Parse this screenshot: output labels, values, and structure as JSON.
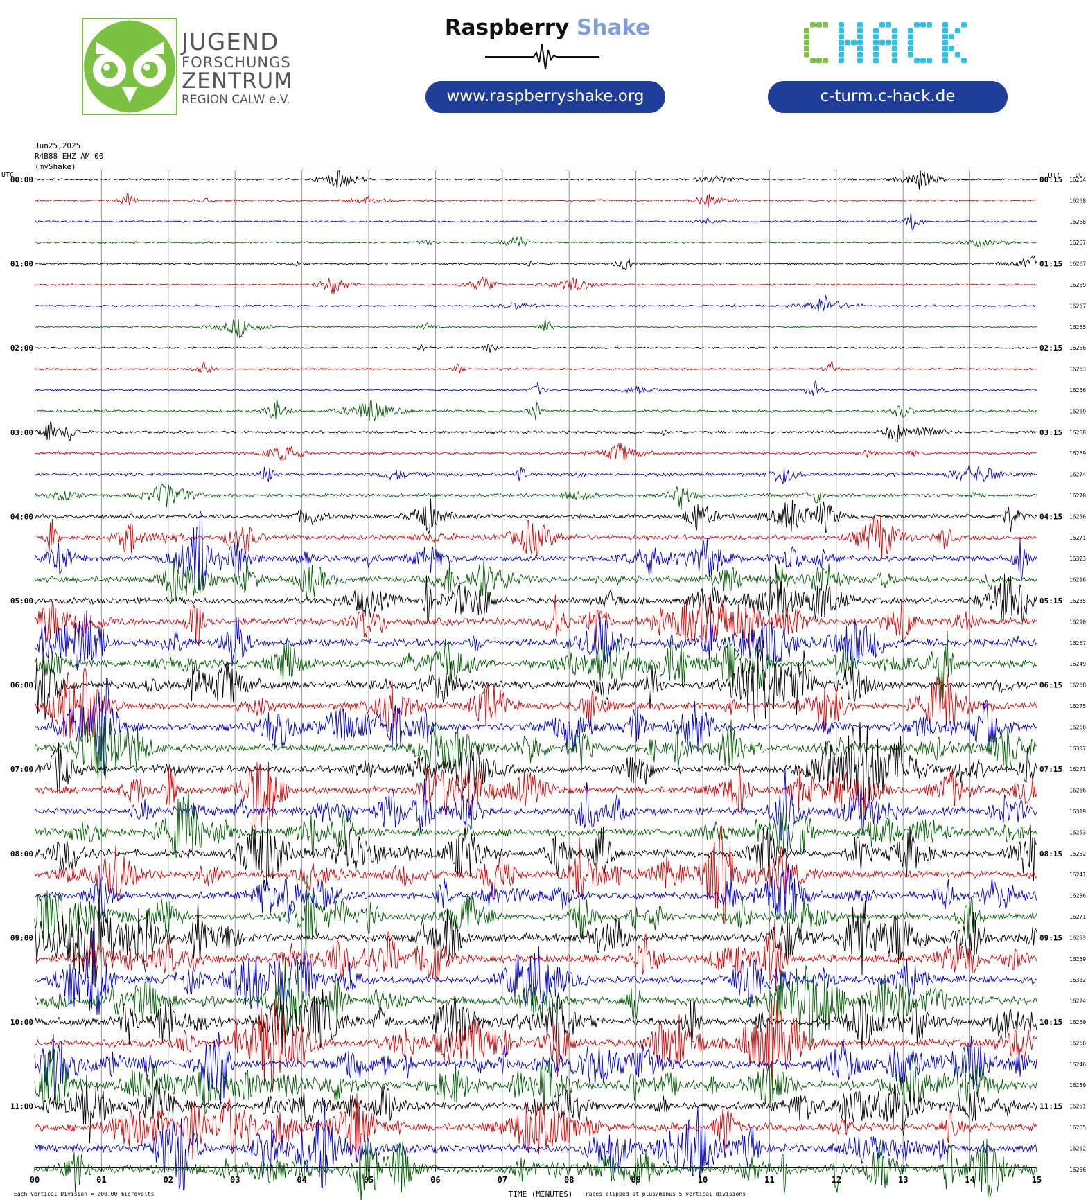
{
  "header": {
    "jfz": {
      "line1": "JUGEND",
      "line2": "FORSCHUNGS",
      "line3": "ZENTRUM",
      "line4": "REGION CALW e.V."
    },
    "rs": {
      "word1": "Raspberry",
      "word2": "Shake",
      "url": "www.raspberryshake.org"
    },
    "chack": {
      "logo_text": "CHACK",
      "url": "c-turm.c-hack.de"
    }
  },
  "meta": {
    "date": "Jun25,2025",
    "station": "R4B88 EHZ AM 00",
    "network": "(myShake)"
  },
  "chart_data": {
    "type": "line",
    "subtype": "helicorder",
    "left_axis_title": "UTC",
    "right_axis_title": "UTC",
    "dc_title": "DC",
    "xlabel": "TIME (MINUTES)",
    "xlim": [
      0,
      15
    ],
    "x_ticks": [
      "00",
      "01",
      "02",
      "03",
      "04",
      "05",
      "06",
      "07",
      "08",
      "09",
      "10",
      "11",
      "12",
      "13",
      "14",
      "15"
    ],
    "left_hour_labels": [
      "00:00",
      "01:00",
      "02:00",
      "03:00",
      "04:00",
      "05:00",
      "06:00",
      "07:00",
      "08:00",
      "09:00",
      "10:00",
      "11:00"
    ],
    "right_hour_labels": [
      "00:15",
      "01:15",
      "02:15",
      "03:15",
      "04:15",
      "05:15",
      "06:15",
      "07:15",
      "08:15",
      "09:15",
      "10:15",
      "11:15"
    ],
    "line_minutes": 15,
    "lines_per_hour": 4,
    "dc_values": [
      "16264",
      "16268",
      "16268",
      "16267",
      "16267",
      "16269",
      "16267",
      "16265",
      "16266",
      "16263",
      "16266",
      "16269",
      "16268",
      "16269",
      "16274",
      "16270",
      "16256",
      "16271",
      "16323",
      "16216",
      "16285",
      "16290",
      "16267",
      "16249",
      "16268",
      "16275",
      "16260",
      "16307",
      "16271",
      "16266",
      "16319",
      "16253",
      "16252",
      "16241",
      "16286",
      "16271",
      "16253",
      "16259",
      "16332",
      "16224",
      "16260",
      "16260",
      "16246",
      "16250",
      "16251",
      "16265",
      "16262",
      "16266"
    ],
    "activity_level": [
      1,
      1,
      1,
      1,
      1,
      1,
      1,
      1,
      1,
      1,
      1,
      2,
      2,
      2,
      3,
      3,
      4,
      5,
      6,
      7,
      7,
      8,
      8,
      8,
      8,
      8,
      8,
      8,
      8,
      8,
      8,
      8,
      8,
      8,
      8,
      8,
      9,
      9,
      9,
      9,
      9,
      9,
      9,
      9,
      9,
      9,
      9,
      9
    ],
    "trace_colors": [
      "#000000",
      "#e00000",
      "#0000e0",
      "#006000"
    ],
    "footer_left": "Each Vertical Division =  200.00 microvolts",
    "footer_right": "Traces clipped at plus/minus 5 vertical divisions"
  }
}
